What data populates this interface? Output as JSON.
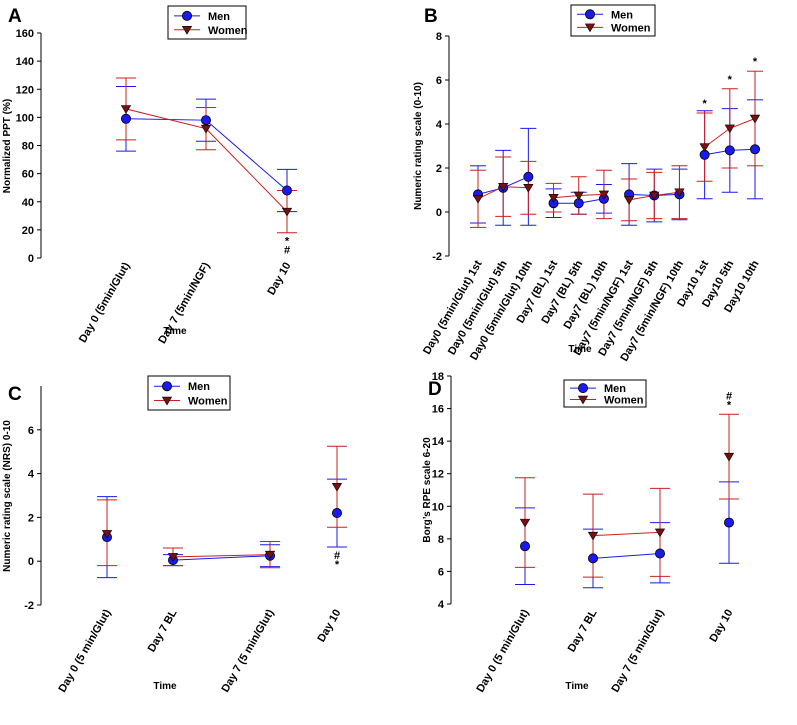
{
  "colors": {
    "men": "#1a1aee",
    "women": "#cc1f1f",
    "axis": "#000000"
  },
  "legend": {
    "men": "Men",
    "women": "Women"
  },
  "chart_data": [
    {
      "panel": "A",
      "type": "line",
      "xlabel": "Time",
      "ylabel": "Normalized PPT (%)",
      "ylim": [
        0,
        160
      ],
      "yticks": [
        "0",
        "20",
        "40",
        "60",
        "80",
        "100",
        "120",
        "140",
        "160"
      ],
      "categories": [
        "Day 0 (5min/Glut)",
        "Day 7 (5min/NGF)",
        "Day 10"
      ],
      "series": [
        {
          "name": "Men",
          "values": [
            99,
            98,
            48
          ],
          "upper": [
            122,
            113,
            63
          ],
          "lower": [
            76,
            83,
            33
          ]
        },
        {
          "name": "Women",
          "values": [
            106,
            92,
            33
          ],
          "upper": [
            128,
            107,
            48
          ],
          "lower": [
            84,
            77,
            18
          ]
        }
      ],
      "annotations": [
        {
          "category": "Day 10",
          "lines": [
            "*",
            "#"
          ]
        }
      ]
    },
    {
      "panel": "B",
      "type": "line",
      "xlabel": "Time",
      "ylabel": "Numeric rating scale (0-10)",
      "ylim": [
        -2,
        8
      ],
      "yticks": [
        "-2",
        "0",
        "2",
        "4",
        "6",
        "8"
      ],
      "categories": [
        "Day0 (5min/Glut) 1st",
        "Day0 (5min/Glut) 5th",
        "Day0 (5min/Glut) 10th",
        "Day7 (BL) 1st",
        "Day7 (BL) 5th",
        "Day7 (BL) 10th",
        "Day7 (5min/NGF) 1st",
        "Day7 (5min/NGF) 5th",
        "Day7 (5min/NGF) 10th",
        "Day10 1st",
        "Day10 5th",
        "Day10 10th"
      ],
      "series": [
        {
          "name": "Men",
          "values": [
            0.8,
            1.1,
            1.6,
            0.4,
            0.4,
            0.6,
            0.8,
            0.75,
            0.8,
            2.6,
            2.8,
            2.85
          ],
          "upper": [
            2.1,
            2.8,
            3.8,
            1.05,
            0.9,
            1.25,
            2.2,
            1.95,
            1.95,
            4.6,
            4.7,
            5.1
          ],
          "lower": [
            -0.5,
            -0.6,
            -0.6,
            -0.25,
            -0.1,
            -0.05,
            -0.6,
            -0.45,
            -0.35,
            0.6,
            0.9,
            0.6
          ]
        },
        {
          "name": "Women",
          "values": [
            0.6,
            1.15,
            1.1,
            0.65,
            0.75,
            0.8,
            0.55,
            0.75,
            0.9,
            2.95,
            3.8,
            4.25
          ],
          "upper": [
            1.9,
            2.5,
            2.3,
            1.3,
            1.6,
            1.9,
            1.5,
            1.8,
            2.1,
            4.5,
            5.6,
            6.4
          ],
          "lower": [
            -0.7,
            -0.2,
            -0.1,
            0.0,
            -0.1,
            -0.3,
            -0.4,
            -0.3,
            -0.3,
            1.4,
            2.0,
            2.1
          ]
        }
      ],
      "annotations": [
        {
          "category": "Day10 1st",
          "lines": [
            "*"
          ]
        },
        {
          "category": "Day10 5th",
          "lines": [
            "*"
          ]
        },
        {
          "category": "Day10 10th",
          "lines": [
            "*"
          ]
        }
      ]
    },
    {
      "panel": "C",
      "type": "line",
      "xlabel": "Time",
      "ylabel": "Numeric rating scale (NRS) 0-10",
      "ylim": [
        -2,
        8
      ],
      "yticks": [
        "-2",
        "0",
        "2",
        "4",
        "6"
      ],
      "categories": [
        "Day 0 (5 min/Glut)",
        "Day 7 BL",
        "Day 7 (5 min/Glut)",
        "Day 10"
      ],
      "series": [
        {
          "name": "Men",
          "values": [
            1.1,
            0.05,
            0.25,
            2.2
          ],
          "upper": [
            2.95,
            0.3,
            0.75,
            3.75
          ],
          "lower": [
            -0.75,
            -0.2,
            -0.25,
            0.65
          ]
        },
        {
          "name": "Women",
          "values": [
            1.25,
            0.2,
            0.3,
            3.4
          ],
          "upper": [
            2.8,
            0.6,
            0.9,
            5.25
          ],
          "lower": [
            -0.2,
            -0.2,
            -0.3,
            1.55
          ]
        }
      ],
      "annotations": [
        {
          "category": "Day 10",
          "lines": [
            "#",
            "*"
          ]
        }
      ]
    },
    {
      "panel": "D",
      "type": "line",
      "xlabel": "Time",
      "ylabel": "Borg’s RPE scale 6-20",
      "ylim": [
        4,
        18
      ],
      "yticks": [
        "4",
        "6",
        "8",
        "10",
        "12",
        "14",
        "16",
        "18"
      ],
      "categories": [
        "Day 0 (5 min/Glut)",
        "Day 7 BL",
        "Day 7 (5 min/Glut)",
        "Day 10"
      ],
      "series": [
        {
          "name": "Men",
          "values": [
            7.55,
            6.8,
            7.1,
            9.0
          ],
          "upper": [
            9.9,
            8.6,
            9.0,
            11.5
          ],
          "lower": [
            5.2,
            5.0,
            5.3,
            6.5
          ]
        },
        {
          "name": "Women",
          "values": [
            9.0,
            8.2,
            8.4,
            13.05
          ],
          "upper": [
            11.75,
            10.75,
            11.1,
            15.65
          ],
          "lower": [
            6.25,
            5.65,
            5.7,
            10.45
          ]
        }
      ],
      "annotations": [
        {
          "category": "Day 10",
          "lines": [
            "#",
            "*"
          ]
        }
      ]
    }
  ]
}
